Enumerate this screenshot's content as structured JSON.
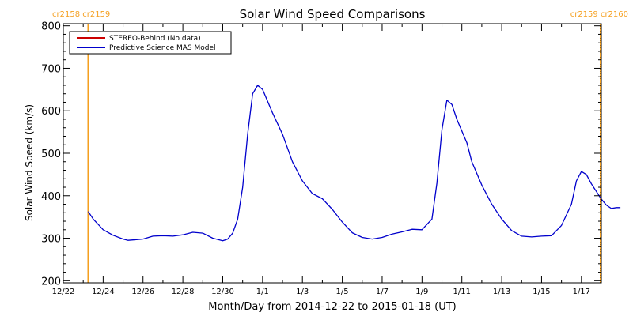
{
  "chart_data": {
    "type": "line",
    "title": "Solar Wind Speed Comparisons",
    "ylabel": "Solar Wind Speed (km/s)",
    "xlabel": "Month/Day from 2014-12-22 to 2015-01-18 (UT)",
    "xlim": [
      "2014-12-22",
      "2015-01-18"
    ],
    "ylim": [
      195,
      805
    ],
    "y_ticks": [
      200,
      300,
      400,
      500,
      600,
      700,
      800
    ],
    "x_ticks": [
      {
        "date": "2014-12-22",
        "label": "12/22"
      },
      {
        "date": "2014-12-24",
        "label": "12/24"
      },
      {
        "date": "2014-12-26",
        "label": "12/26"
      },
      {
        "date": "2014-12-28",
        "label": "12/28"
      },
      {
        "date": "2014-12-30",
        "label": "12/30"
      },
      {
        "date": "2015-01-01",
        "label": "1/1"
      },
      {
        "date": "2015-01-03",
        "label": "1/3"
      },
      {
        "date": "2015-01-05",
        "label": "1/5"
      },
      {
        "date": "2015-01-07",
        "label": "1/7"
      },
      {
        "date": "2015-01-09",
        "label": "1/9"
      },
      {
        "date": "2015-01-11",
        "label": "1/11"
      },
      {
        "date": "2015-01-13",
        "label": "1/13"
      },
      {
        "date": "2015-01-15",
        "label": "1/15"
      },
      {
        "date": "2015-01-17",
        "label": "1/17"
      }
    ],
    "grid": false,
    "legend_position": "top-left",
    "series": [
      {
        "name": "STEREO-Behind (No data)",
        "color": "#cc0000",
        "x": [],
        "y": []
      },
      {
        "name": "Predictive Science MAS Model",
        "color": "#0000cc",
        "x": [
          "2014-12-23 06:00",
          "2014-12-23 12:00",
          "2014-12-24 00:00",
          "2014-12-24 12:00",
          "2014-12-25 00:00",
          "2014-12-25 06:00",
          "2014-12-25 12:00",
          "2014-12-26 00:00",
          "2014-12-26 12:00",
          "2014-12-27 00:00",
          "2014-12-27 12:00",
          "2014-12-28 00:00",
          "2014-12-28 12:00",
          "2014-12-29 00:00",
          "2014-12-29 12:00",
          "2014-12-30 00:00",
          "2014-12-30 06:00",
          "2014-12-30 12:00",
          "2014-12-30 18:00",
          "2014-12-31 00:00",
          "2014-12-31 06:00",
          "2014-12-31 12:00",
          "2014-12-31 18:00",
          "2015-01-01 00:00",
          "2015-01-01 12:00",
          "2015-01-02 00:00",
          "2015-01-02 12:00",
          "2015-01-03 00:00",
          "2015-01-03 12:00",
          "2015-01-04 00:00",
          "2015-01-04 12:00",
          "2015-01-05 00:00",
          "2015-01-05 12:00",
          "2015-01-06 00:00",
          "2015-01-06 12:00",
          "2015-01-07 00:00",
          "2015-01-07 12:00",
          "2015-01-08 00:00",
          "2015-01-08 12:00",
          "2015-01-09 00:00",
          "2015-01-09 12:00",
          "2015-01-09 18:00",
          "2015-01-10 00:00",
          "2015-01-10 06:00",
          "2015-01-10 12:00",
          "2015-01-10 18:00",
          "2015-01-11 06:00",
          "2015-01-11 12:00",
          "2015-01-12 00:00",
          "2015-01-12 12:00",
          "2015-01-13 00:00",
          "2015-01-13 12:00",
          "2015-01-14 00:00",
          "2015-01-14 12:00",
          "2015-01-15 00:00",
          "2015-01-15 12:00",
          "2015-01-16 00:00",
          "2015-01-16 12:00",
          "2015-01-16 18:00",
          "2015-01-17 00:00",
          "2015-01-17 06:00",
          "2015-01-17 12:00",
          "2015-01-17 18:00",
          "2015-01-18 00:00",
          "2015-01-18 06:00",
          "2015-01-18 12:00",
          "2015-01-18 18:00",
          "2015-01-18 23:00"
        ],
        "y": [
          363,
          345,
          320,
          307,
          298,
          295,
          296,
          298,
          305,
          306,
          305,
          308,
          314,
          312,
          300,
          294,
          298,
          312,
          345,
          420,
          545,
          640,
          660,
          650,
          595,
          545,
          480,
          435,
          405,
          393,
          368,
          338,
          313,
          302,
          298,
          302,
          310,
          315,
          321,
          320,
          345,
          430,
          555,
          625,
          615,
          580,
          525,
          480,
          425,
          380,
          345,
          318,
          305,
          303,
          305,
          306,
          330,
          380,
          435,
          457,
          450,
          428,
          410,
          392,
          378,
          370,
          372,
          372
        ]
      }
    ],
    "annotations": [
      {
        "date": "2014-12-23 06:00",
        "label": "cr2158 cr2159",
        "color": "#f5a020",
        "side": "left"
      },
      {
        "date": "2015-01-18 23:00",
        "label": "cr2159 cr2160",
        "color": "#f5a020",
        "side": "right"
      }
    ]
  }
}
